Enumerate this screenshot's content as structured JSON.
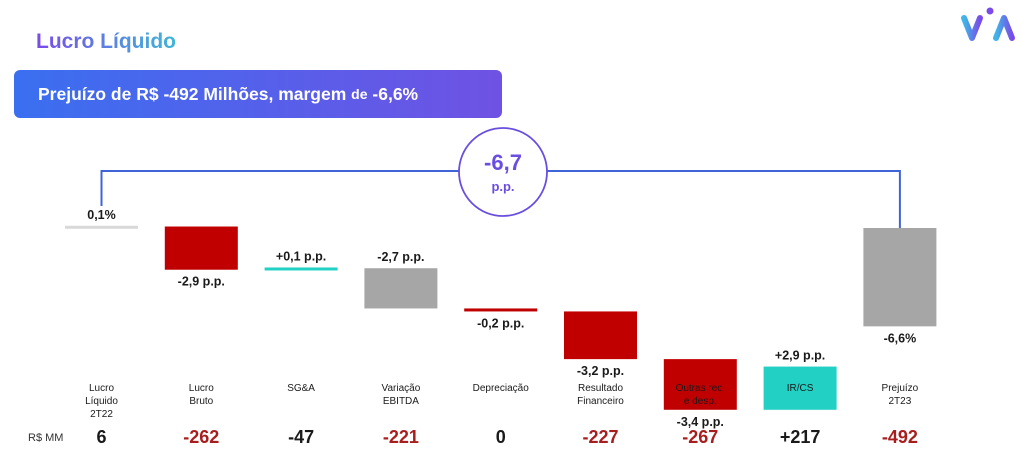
{
  "header": {
    "title": "Lucro Líquido",
    "banner_part1": "Prejuízo de R$ -492 Milhões, margem",
    "banner_de": "de",
    "banner_part2": "-6,6%"
  },
  "highlight": {
    "value": "-6,7",
    "unit": "p.p."
  },
  "row_unit": "R$ MM",
  "colors": {
    "neutral": "#a6a6a6",
    "negative": "#c00000",
    "positive": "#22d0c4",
    "connector": "#3f64d8",
    "circle": "#6a4ee0",
    "negative_text": "#a81d1d",
    "positive_text": "#1a1a1a"
  },
  "chart_data": {
    "type": "waterfall",
    "unit": "p.p.",
    "categories": [
      [
        "Lucro",
        "Líquido",
        "2T22"
      ],
      [
        "Lucro",
        "Bruto"
      ],
      [
        "SG&A"
      ],
      [
        "Variação",
        "EBITDA"
      ],
      [
        "Depreciação"
      ],
      [
        "Resultado",
        "Financeiro"
      ],
      [
        "Outras rec.",
        "e desp."
      ],
      [
        "IR/CS"
      ],
      [
        "Prejuízo",
        "2T23"
      ]
    ],
    "steps": [
      {
        "kind": "total",
        "value": 0.1,
        "label": "0,1%",
        "color": "neutral",
        "amount": "6"
      },
      {
        "kind": "delta",
        "value": -2.9,
        "label": "-2,9 p.p.",
        "color": "negative",
        "amount": "-262"
      },
      {
        "kind": "delta",
        "value": 0.1,
        "label": "+0,1 p.p.",
        "color": "positive",
        "amount": "-47"
      },
      {
        "kind": "delta",
        "value": -2.7,
        "label": "-2,7 p.p.",
        "color": "neutral",
        "amount": "-221"
      },
      {
        "kind": "delta",
        "value": -0.2,
        "label": "-0,2 p.p.",
        "color": "negative",
        "amount": "0"
      },
      {
        "kind": "delta",
        "value": -3.2,
        "label": "-3,2 p.p.",
        "color": "negative",
        "amount": "-227"
      },
      {
        "kind": "delta",
        "value": -3.4,
        "label": "-3,4 p.p.",
        "color": "negative",
        "amount": "-267"
      },
      {
        "kind": "delta",
        "value": 2.9,
        "label": "+2,9 p.p.",
        "color": "positive",
        "amount": "+217"
      },
      {
        "kind": "total",
        "value": -6.6,
        "label": "-6,6%",
        "color": "neutral",
        "amount": "-492"
      }
    ],
    "amount_colors": [
      "positive_text",
      "negative_text",
      "positive_text",
      "negative_text",
      "positive_text",
      "negative_text",
      "negative_text",
      "positive_text",
      "negative_text"
    ]
  }
}
